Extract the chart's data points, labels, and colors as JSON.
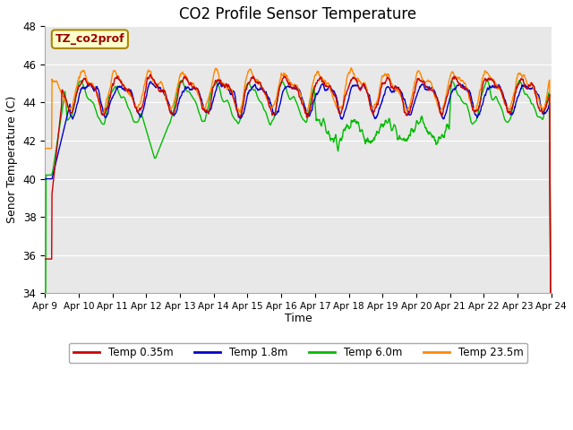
{
  "title": "CO2 Profile Sensor Temperature",
  "ylabel": "Senor Temperature (C)",
  "xlabel": "Time",
  "ylim": [
    34,
    48
  ],
  "xlim": [
    0,
    360
  ],
  "yticks": [
    34,
    36,
    38,
    40,
    42,
    44,
    46,
    48
  ],
  "xtick_labels": [
    "Apr 9",
    "Apr 10",
    "Apr 11",
    "Apr 12",
    "Apr 13",
    "Apr 14",
    "Apr 15",
    "Apr 16",
    "Apr 17",
    "Apr 18",
    "Apr 19",
    "Apr 20",
    "Apr 21",
    "Apr 22",
    "Apr 23",
    "Apr 24"
  ],
  "colors": {
    "red": "#cc0000",
    "blue": "#0000cc",
    "green": "#00bb00",
    "orange": "#ff8800"
  },
  "legend_label": "TZ_co2prof",
  "legend_labels": [
    "Temp 0.35m",
    "Temp 1.8m",
    "Temp 6.0m",
    "Temp 23.5m"
  ],
  "bg_color": "#e8e8e8",
  "title_fontsize": 12,
  "axis_fontsize": 9
}
